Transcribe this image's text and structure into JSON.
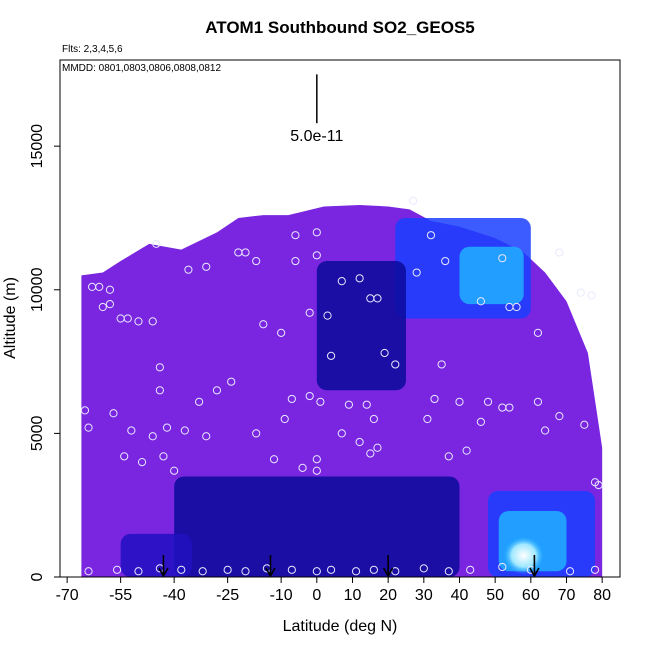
{
  "chart_data": {
    "type": "heatmap",
    "title": "ATOM1 Southbound SO2_GEOS5",
    "subtitle_flights": "Flts: 2,3,4,5,6",
    "subtitle_dates": "MMDD: 0801,0803,0806,0808,0812",
    "xlabel": "Latitude (deg N)",
    "ylabel": "Altitude (m)",
    "xlim": [
      -72,
      85
    ],
    "ylim": [
      0,
      18000
    ],
    "x_ticks": [
      -70,
      -55,
      -40,
      -25,
      -10,
      0,
      10,
      20,
      30,
      40,
      50,
      60,
      70,
      80
    ],
    "y_ticks": [
      0,
      5000,
      10000,
      15000
    ],
    "scale_bar_label": "5.0e-11",
    "scale_bar_x": 0,
    "scale_bar_y": [
      15800,
      17500
    ],
    "colors": {
      "background": "#ffffff",
      "purple": "#7a26e0",
      "violet": "#5a1ad8",
      "blue": "#2010c0",
      "navy": "#0a0a9a",
      "bright_blue": "#1a40ff",
      "cyan": "#20b0ff",
      "light_cyan": "#a0e8ff",
      "white_core": "#ffffff"
    },
    "field_envelope": [
      [
        -66,
        10500
      ],
      [
        -60,
        10600
      ],
      [
        -55,
        11000
      ],
      [
        -47,
        11600
      ],
      [
        -38,
        11400
      ],
      [
        -28,
        12000
      ],
      [
        -22,
        12500
      ],
      [
        -15,
        12600
      ],
      [
        -8,
        12600
      ],
      [
        2,
        12900
      ],
      [
        12,
        12950
      ],
      [
        20,
        12900
      ],
      [
        26,
        12800
      ],
      [
        32,
        12400
      ],
      [
        40,
        12200
      ],
      [
        50,
        11800
      ],
      [
        58,
        11300
      ],
      [
        64,
        10600
      ],
      [
        70,
        9600
      ],
      [
        76,
        7800
      ],
      [
        80,
        4500
      ],
      [
        80,
        0
      ]
    ],
    "features": [
      {
        "name": "lower-troposphere-blue",
        "x": [
          -40,
          40
        ],
        "y": [
          0,
          3500
        ],
        "level": "navy"
      },
      {
        "name": "south-lower-band",
        "x": [
          -55,
          -35
        ],
        "y": [
          0,
          1500
        ],
        "level": "blue"
      },
      {
        "name": "north-plume-upper",
        "x": [
          22,
          60
        ],
        "y": [
          9000,
          12500
        ],
        "level": "bright_blue"
      },
      {
        "name": "north-plume-upper-core",
        "x": [
          40,
          58
        ],
        "y": [
          9500,
          11500
        ],
        "level": "cyan"
      },
      {
        "name": "central-upper-channel",
        "x": [
          0,
          25
        ],
        "y": [
          6500,
          11000
        ],
        "level": "navy"
      },
      {
        "name": "boundary-plume",
        "x": [
          48,
          78
        ],
        "y": [
          0,
          3000
        ],
        "level": "bright_blue"
      },
      {
        "name": "boundary-plume-core",
        "x": [
          51,
          70
        ],
        "y": [
          200,
          2300
        ],
        "level": "cyan"
      },
      {
        "name": "boundary-plume-max",
        "x": [
          54,
          62
        ],
        "y": [
          300,
          1200
        ],
        "level": "white_core"
      }
    ],
    "observations": [
      [
        -64,
        200
      ],
      [
        -56,
        250
      ],
      [
        -50,
        200
      ],
      [
        -44,
        300
      ],
      [
        -38,
        250
      ],
      [
        -32,
        200
      ],
      [
        -25,
        250
      ],
      [
        -20,
        200
      ],
      [
        -14,
        300
      ],
      [
        -7,
        250
      ],
      [
        0,
        200
      ],
      [
        4,
        250
      ],
      [
        11,
        200
      ],
      [
        16,
        250
      ],
      [
        22,
        200
      ],
      [
        30,
        300
      ],
      [
        37,
        200
      ],
      [
        43,
        250
      ],
      [
        52,
        350
      ],
      [
        60,
        250
      ],
      [
        71,
        200
      ],
      [
        78,
        250
      ],
      [
        -65,
        5800
      ],
      [
        -64,
        5200
      ],
      [
        -57,
        5700
      ],
      [
        -54,
        4200
      ],
      [
        -52,
        5100
      ],
      [
        -49,
        4000
      ],
      [
        -46,
        4900
      ],
      [
        -43,
        4200
      ],
      [
        -42,
        5200
      ],
      [
        -40,
        3700
      ],
      [
        -37,
        5100
      ],
      [
        -33,
        6100
      ],
      [
        -31,
        4900
      ],
      [
        -28,
        6500
      ],
      [
        -24,
        6800
      ],
      [
        -17,
        5000
      ],
      [
        -12,
        4100
      ],
      [
        -9,
        5500
      ],
      [
        -7,
        6200
      ],
      [
        -4,
        3800
      ],
      [
        -2,
        6300
      ],
      [
        0,
        4100
      ],
      [
        0,
        3700
      ],
      [
        1,
        6100
      ],
      [
        4,
        7700
      ],
      [
        7,
        5000
      ],
      [
        9,
        6000
      ],
      [
        12,
        4700
      ],
      [
        14,
        6000
      ],
      [
        15,
        4300
      ],
      [
        16,
        5500
      ],
      [
        17,
        4500
      ],
      [
        19,
        7800
      ],
      [
        22,
        7400
      ],
      [
        31,
        5500
      ],
      [
        33,
        6200
      ],
      [
        35,
        7400
      ],
      [
        37,
        4200
      ],
      [
        40,
        6100
      ],
      [
        42,
        4400
      ],
      [
        46,
        5400
      ],
      [
        48,
        6100
      ],
      [
        52,
        5900
      ],
      [
        54,
        5900
      ],
      [
        62,
        6100
      ],
      [
        64,
        5100
      ],
      [
        68,
        5600
      ],
      [
        75,
        5300
      ],
      [
        78,
        3300
      ],
      [
        79,
        3200
      ],
      [
        -60,
        9400
      ],
      [
        -58,
        9500
      ],
      [
        -55,
        9000
      ],
      [
        -53,
        9000
      ],
      [
        -50,
        8900
      ],
      [
        -46,
        8900
      ],
      [
        -44,
        7300
      ],
      [
        -44,
        6500
      ],
      [
        -36,
        10700
      ],
      [
        -31,
        10800
      ],
      [
        -15,
        8800
      ],
      [
        -10,
        8500
      ],
      [
        -6,
        11000
      ],
      [
        0,
        11200
      ],
      [
        3,
        9100
      ],
      [
        -2,
        9200
      ],
      [
        7,
        10300
      ],
      [
        12,
        10400
      ],
      [
        15,
        9700
      ],
      [
        17,
        9700
      ],
      [
        28,
        10600
      ],
      [
        32,
        11900
      ],
      [
        36,
        11000
      ],
      [
        46,
        9600
      ],
      [
        52,
        11100
      ],
      [
        54,
        9400
      ],
      [
        56,
        9400
      ],
      [
        62,
        8500
      ],
      [
        68,
        11300
      ],
      [
        74,
        9900
      ],
      [
        77,
        9800
      ],
      [
        -63,
        10100
      ],
      [
        -61,
        10100
      ],
      [
        -58,
        10000
      ],
      [
        -45,
        11600
      ],
      [
        -22,
        11300
      ],
      [
        -20,
        11300
      ],
      [
        -17,
        11000
      ],
      [
        -6,
        11900
      ],
      [
        0,
        12000
      ],
      [
        27,
        13100
      ]
    ],
    "arrow_latitudes": [
      -43,
      -13,
      20,
      61
    ]
  }
}
